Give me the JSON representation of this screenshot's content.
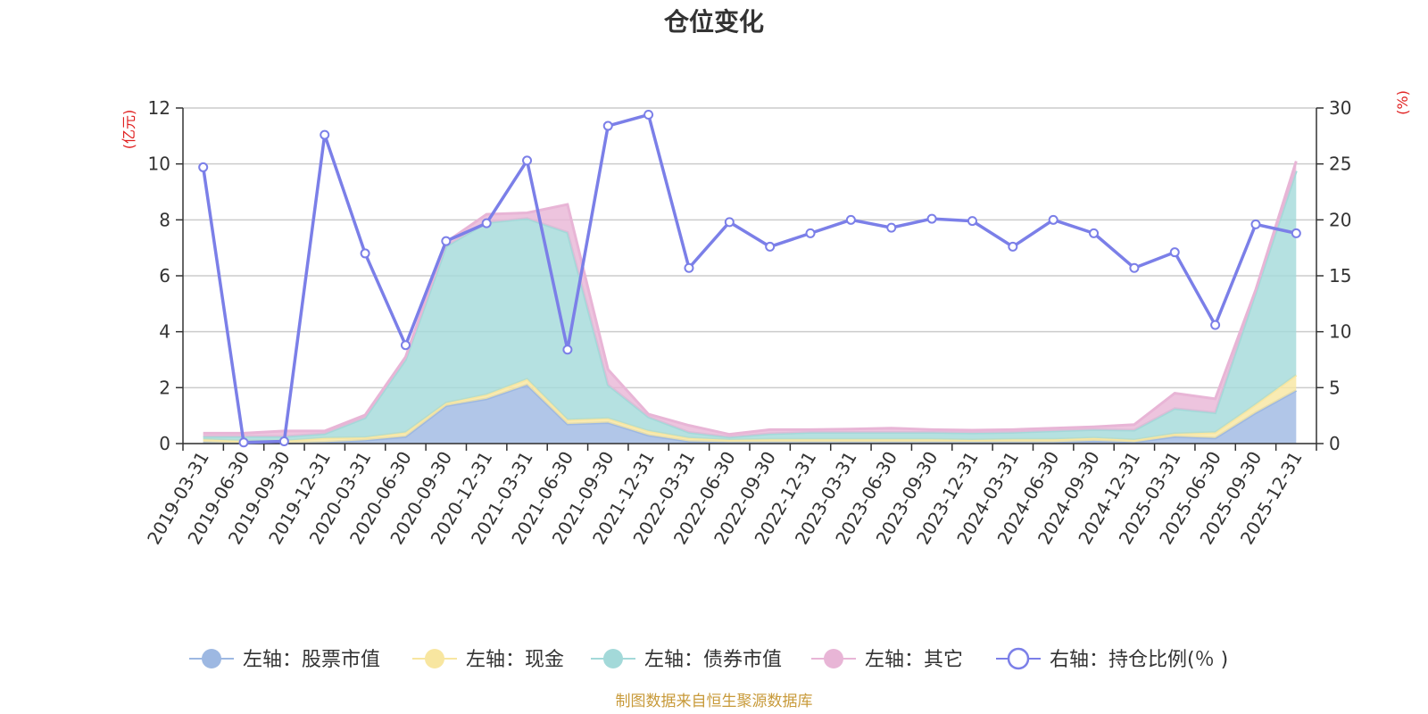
{
  "chart_data": {
    "type": "area",
    "title": "仓位变化",
    "categories": [
      "2019-03-31",
      "2019-06-30",
      "2019-09-30",
      "2019-12-31",
      "2020-03-31",
      "2020-06-30",
      "2020-09-30",
      "2020-12-31",
      "2021-03-31",
      "2021-06-30",
      "2021-09-30",
      "2021-12-31",
      "2022-03-31",
      "2022-06-30",
      "2022-09-30",
      "2022-12-31",
      "2023-03-31",
      "2023-06-30",
      "2023-09-30",
      "2023-12-31",
      "2024-03-31",
      "2024-06-30",
      "2024-09-30",
      "2024-12-31",
      "2025-03-31",
      "2025-06-30",
      "2025-09-30",
      "2025-12-31"
    ],
    "left_axis": {
      "unit": "(亿元)",
      "ylim": [
        0,
        12
      ],
      "ticks": [
        "0",
        "2",
        "4",
        "6",
        "8",
        "10",
        "12"
      ]
    },
    "right_axis": {
      "unit": "(%)",
      "ylim": [
        0,
        30
      ],
      "ticks": [
        "0",
        "5",
        "10",
        "15",
        "20",
        "25",
        "30"
      ]
    },
    "stacked_series": [
      {
        "name": "左轴：股票市值",
        "color": "#9db8e2",
        "values": [
          0.05,
          0.02,
          0.02,
          0.05,
          0.12,
          0.25,
          1.35,
          1.6,
          2.1,
          0.7,
          0.75,
          0.3,
          0.08,
          0.05,
          0.05,
          0.05,
          0.05,
          0.05,
          0.05,
          0.05,
          0.05,
          0.05,
          0.1,
          0.05,
          0.25,
          0.2,
          1.1,
          1.9
        ]
      },
      {
        "name": "左轴：现金",
        "color": "#f8e6a0",
        "values": [
          0.1,
          0.08,
          0.08,
          0.15,
          0.1,
          0.15,
          0.1,
          0.15,
          0.2,
          0.15,
          0.15,
          0.15,
          0.12,
          0.08,
          0.1,
          0.1,
          0.1,
          0.1,
          0.1,
          0.08,
          0.1,
          0.1,
          0.1,
          0.08,
          0.1,
          0.2,
          0.3,
          0.55
        ]
      },
      {
        "name": "左轴：债券市值",
        "color": "#a3d9d9",
        "values": [
          0.1,
          0.15,
          0.15,
          0.15,
          0.7,
          2.6,
          5.6,
          6.15,
          5.75,
          6.7,
          1.2,
          0.5,
          0.2,
          0.1,
          0.2,
          0.25,
          0.25,
          0.25,
          0.25,
          0.25,
          0.25,
          0.3,
          0.3,
          0.35,
          0.9,
          0.7,
          4.0,
          7.3
        ]
      },
      {
        "name": "左轴：其它",
        "color": "#e8b5d6",
        "values": [
          0.12,
          0.12,
          0.2,
          0.1,
          0.1,
          0.1,
          0.15,
          0.3,
          0.2,
          1.0,
          0.55,
          0.1,
          0.25,
          0.1,
          0.15,
          0.1,
          0.12,
          0.15,
          0.1,
          0.1,
          0.1,
          0.1,
          0.1,
          0.2,
          0.55,
          0.5,
          0.1,
          0.35
        ]
      }
    ],
    "line_series": {
      "name": "右轴：持仓比例(％ )",
      "color": "#7b7fe8",
      "values": [
        24.7,
        0.1,
        0.2,
        27.6,
        17.0,
        8.8,
        18.1,
        19.7,
        25.3,
        8.4,
        28.4,
        29.4,
        15.7,
        19.8,
        17.6,
        18.8,
        20.0,
        19.3,
        20.1,
        19.9,
        17.6,
        20.0,
        18.8,
        15.7,
        17.1,
        10.6,
        19.6,
        18.8
      ]
    },
    "legend_position": "bottom-center",
    "grid": true
  },
  "footer": {
    "source": "制图数据来自恒生聚源数据库",
    "source_color": "#c89a3a"
  },
  "colors": {
    "axis_unit": "#e02020",
    "grid": "#cccccc",
    "axis": "#333333"
  }
}
